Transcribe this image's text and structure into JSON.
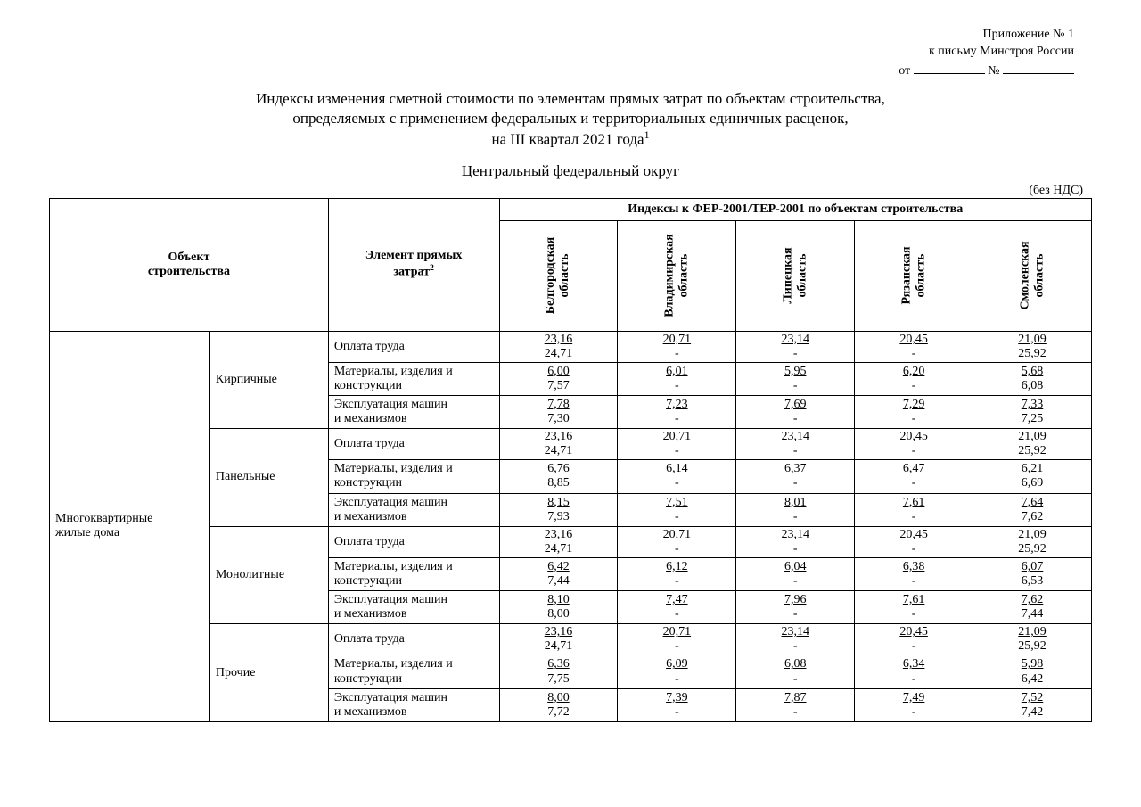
{
  "header": {
    "appendix": "Приложение № 1",
    "to_letter": "к письму Минстроя России",
    "from_label": "от",
    "num_label": "№"
  },
  "title": {
    "l1": "Индексы изменения сметной стоимости по элементам прямых затрат по объектам строительства,",
    "l2": "определяемых с применением федеральных и территориальных единичных расценок,",
    "l3_a": "на III квартал 2021 года",
    "l3_sup": "1"
  },
  "subtitle": "Центральный федеральный округ",
  "no_vat": "(без НДС)",
  "table": {
    "obj_header": "Объект\nстроительства",
    "elem_header_a": "Элемент прямых\nзатрат",
    "elem_header_sup": "2",
    "super_header": "Индексы к ФЕР-2001/ТЕР-2001 по объектам строительства",
    "regions": [
      "Белгородская\nобласть",
      "Владимирская\nобласть",
      "Липецкая\nобласть",
      "Рязанская\nобласть",
      "Смоленская\nобласть"
    ],
    "row_group_label": "Многоквартирные\nжилые дома",
    "subgroups": [
      "Кирпичные",
      "Панельные",
      "Монолитные",
      "Прочие"
    ],
    "elem_labels": [
      "Оплата труда",
      "Материалы, изделия и\nконструкции",
      "Эксплуатация машин\nи механизмов"
    ],
    "data": [
      [
        [
          [
            "23,16",
            "24,71"
          ],
          [
            "20,71",
            "-"
          ],
          [
            "23,14",
            "-"
          ],
          [
            "20,45",
            "-"
          ],
          [
            "21,09",
            "25,92"
          ]
        ],
        [
          [
            "6,00",
            "7,57"
          ],
          [
            "6,01",
            "-"
          ],
          [
            "5,95",
            "-"
          ],
          [
            "6,20",
            "-"
          ],
          [
            "5,68",
            "6,08"
          ]
        ],
        [
          [
            "7,78",
            "7,30"
          ],
          [
            "7,23",
            "-"
          ],
          [
            "7,69",
            "-"
          ],
          [
            "7,29",
            "-"
          ],
          [
            "7,33",
            "7,25"
          ]
        ]
      ],
      [
        [
          [
            "23,16",
            "24,71"
          ],
          [
            "20,71",
            "-"
          ],
          [
            "23,14",
            "-"
          ],
          [
            "20,45",
            "-"
          ],
          [
            "21,09",
            "25,92"
          ]
        ],
        [
          [
            "6,76",
            "8,85"
          ],
          [
            "6,14",
            "-"
          ],
          [
            "6,37",
            "-"
          ],
          [
            "6,47",
            "-"
          ],
          [
            "6,21",
            "6,69"
          ]
        ],
        [
          [
            "8,15",
            "7,93"
          ],
          [
            "7,51",
            "-"
          ],
          [
            "8,01",
            "-"
          ],
          [
            "7,61",
            "-"
          ],
          [
            "7,64",
            "7,62"
          ]
        ]
      ],
      [
        [
          [
            "23,16",
            "24,71"
          ],
          [
            "20,71",
            "-"
          ],
          [
            "23,14",
            "-"
          ],
          [
            "20,45",
            "-"
          ],
          [
            "21,09",
            "25,92"
          ]
        ],
        [
          [
            "6,42",
            "7,44"
          ],
          [
            "6,12",
            "-"
          ],
          [
            "6,04",
            "-"
          ],
          [
            "6,38",
            "-"
          ],
          [
            "6,07",
            "6,53"
          ]
        ],
        [
          [
            "8,10",
            "8,00"
          ],
          [
            "7,47",
            "-"
          ],
          [
            "7,96",
            "-"
          ],
          [
            "7,61",
            "-"
          ],
          [
            "7,62",
            "7,44"
          ]
        ]
      ],
      [
        [
          [
            "23,16",
            "24,71"
          ],
          [
            "20,71",
            "-"
          ],
          [
            "23,14",
            "-"
          ],
          [
            "20,45",
            "-"
          ],
          [
            "21,09",
            "25,92"
          ]
        ],
        [
          [
            "6,36",
            "7,75"
          ],
          [
            "6,09",
            "-"
          ],
          [
            "6,08",
            "-"
          ],
          [
            "6,34",
            "-"
          ],
          [
            "5,98",
            "6,42"
          ]
        ],
        [
          [
            "8,00",
            "7,72"
          ],
          [
            "7,39",
            "-"
          ],
          [
            "7,87",
            "-"
          ],
          [
            "7,49",
            "-"
          ],
          [
            "7,52",
            "7,42"
          ]
        ]
      ]
    ]
  }
}
